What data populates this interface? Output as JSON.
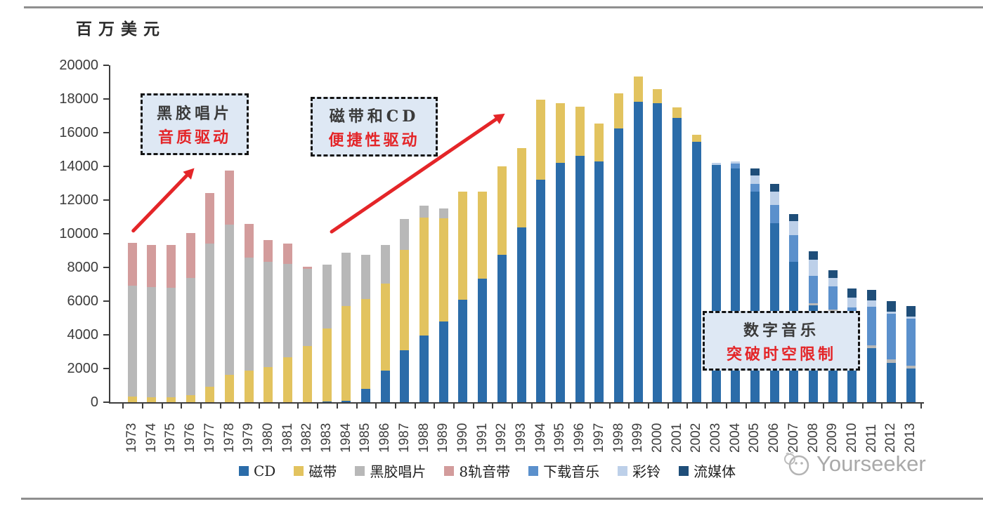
{
  "chart_data": {
    "type": "bar",
    "stacked": true,
    "unit_label": "百万美元",
    "ylim": [
      0,
      20000
    ],
    "ytick_step": 2000,
    "grid": false,
    "legend_position": "bottom",
    "categories": [
      1973,
      1974,
      1975,
      1976,
      1977,
      1978,
      1979,
      1980,
      1981,
      1982,
      1983,
      1984,
      1985,
      1986,
      1987,
      1988,
      1989,
      1990,
      1991,
      1992,
      1993,
      1994,
      1995,
      1996,
      1997,
      1998,
      1999,
      2000,
      2001,
      2002,
      2003,
      2004,
      2005,
      2006,
      2007,
      2008,
      2009,
      2010,
      2011,
      2012,
      2013
    ],
    "series": [
      {
        "name": "CD",
        "color": "#2b6ca9",
        "values": [
          0,
          0,
          0,
          0,
          0,
          0,
          0,
          0,
          0,
          0,
          30,
          80,
          790,
          1880,
          3080,
          3960,
          4790,
          6080,
          7330,
          8750,
          10380,
          13210,
          14210,
          14630,
          14290,
          16250,
          17830,
          17750,
          16880,
          15460,
          14080,
          13880,
          12500,
          10630,
          8330,
          5750,
          5400,
          3400,
          3200,
          2330,
          2000
        ]
      },
      {
        "name": "磁带",
        "color": "#e2c35f",
        "values": [
          330,
          290,
          300,
          420,
          920,
          1630,
          1880,
          2080,
          2670,
          3330,
          4330,
          5630,
          5330,
          5170,
          5960,
          7000,
          6130,
          6420,
          5170,
          5250,
          4720,
          4740,
          3540,
          2920,
          2250,
          2080,
          1500,
          830,
          620,
          420,
          0,
          0,
          0,
          0,
          0,
          0,
          0,
          0,
          0,
          0,
          0
        ]
      },
      {
        "name": "黑胶唱片",
        "color": "#b8b8b8",
        "values": [
          6580,
          6540,
          6500,
          6960,
          8500,
          8920,
          6700,
          6250,
          5540,
          4580,
          3800,
          3170,
          2630,
          2290,
          1830,
          700,
          580,
          0,
          0,
          0,
          0,
          0,
          0,
          0,
          0,
          0,
          0,
          0,
          0,
          0,
          0,
          0,
          0,
          0,
          0,
          130,
          100,
          100,
          170,
          200,
          170
        ]
      },
      {
        "name": "8轨音带",
        "color": "#d39c9c",
        "values": [
          2550,
          2500,
          2550,
          2670,
          3000,
          3200,
          2000,
          1290,
          1210,
          130,
          0,
          0,
          0,
          0,
          0,
          0,
          0,
          0,
          0,
          0,
          0,
          0,
          0,
          0,
          0,
          0,
          0,
          0,
          0,
          0,
          0,
          0,
          0,
          0,
          0,
          0,
          0,
          0,
          0,
          0,
          0
        ]
      },
      {
        "name": "下载音乐",
        "color": "#5b90cc",
        "values": [
          0,
          0,
          0,
          0,
          0,
          0,
          0,
          0,
          0,
          0,
          0,
          0,
          0,
          0,
          0,
          0,
          0,
          0,
          0,
          0,
          0,
          0,
          0,
          0,
          0,
          0,
          0,
          0,
          0,
          0,
          0,
          300,
          450,
          1080,
          1580,
          1620,
          1380,
          2130,
          2300,
          2700,
          2800
        ]
      },
      {
        "name": "彩铃",
        "color": "#bdd0e9",
        "values": [
          0,
          0,
          0,
          0,
          0,
          0,
          0,
          0,
          0,
          0,
          0,
          0,
          0,
          0,
          0,
          0,
          0,
          0,
          0,
          0,
          0,
          0,
          0,
          0,
          0,
          0,
          0,
          0,
          0,
          0,
          130,
          110,
          500,
          790,
          830,
          960,
          500,
          580,
          380,
          150,
          100
        ]
      },
      {
        "name": "流媒体",
        "color": "#1f4e79",
        "values": [
          0,
          0,
          0,
          0,
          0,
          0,
          0,
          0,
          0,
          0,
          0,
          0,
          0,
          0,
          0,
          0,
          0,
          0,
          0,
          0,
          0,
          0,
          0,
          0,
          0,
          0,
          0,
          0,
          0,
          0,
          0,
          0,
          420,
          460,
          420,
          500,
          460,
          540,
          630,
          600,
          630
        ]
      }
    ]
  },
  "annotations": [
    {
      "line1": "黑胶唱片",
      "line2": "音质驱动"
    },
    {
      "line1": "磁带和CD",
      "line2": "便捷性驱动"
    },
    {
      "line1": "数字音乐",
      "line2": "突破时空限制"
    }
  ],
  "watermark": {
    "text": "Yourseeker"
  }
}
